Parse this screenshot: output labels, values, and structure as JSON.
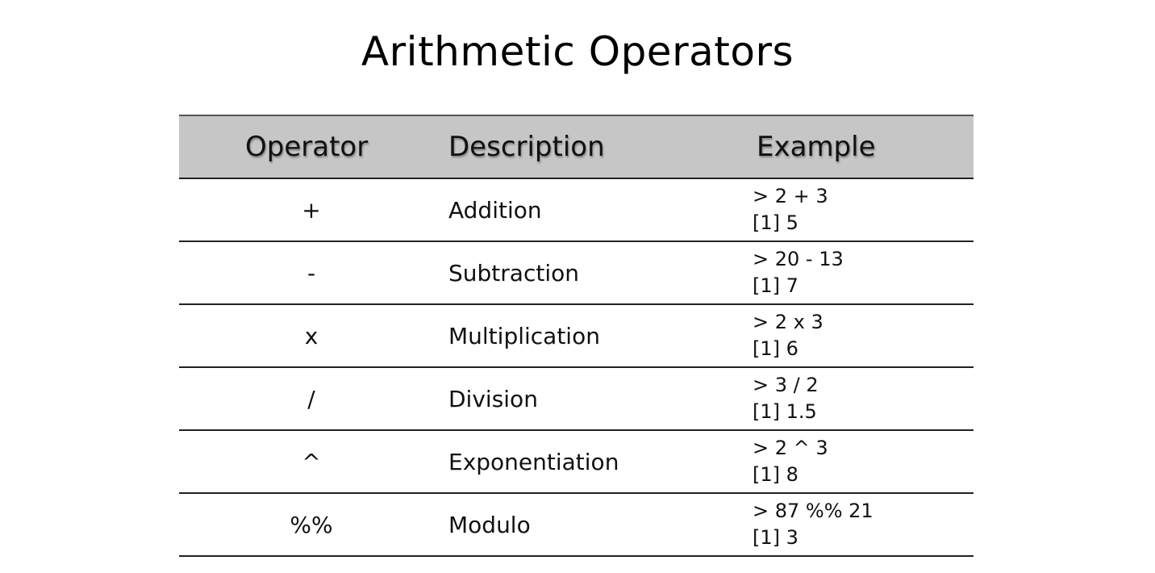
{
  "slide": {
    "title": "Arithmetic Operators"
  },
  "table": {
    "headers": {
      "operator": "Operator",
      "description": "Description",
      "example": "Example"
    },
    "rows": [
      {
        "operator": "+",
        "description": "Addition",
        "example_input": "> 2 + 3",
        "example_output": "[1] 5"
      },
      {
        "operator": "-",
        "description": "Subtraction",
        "example_input": "> 20 - 13",
        "example_output": "[1] 7"
      },
      {
        "operator": "x",
        "description": "Multiplication",
        "example_input": "> 2 x 3",
        "example_output": "[1] 6"
      },
      {
        "operator": "/",
        "description": "Division",
        "example_input": "> 3 / 2",
        "example_output": "[1] 1.5"
      },
      {
        "operator": "^",
        "description": "Exponentiation",
        "example_input": "> 2 ^ 3",
        "example_output": "[1] 8"
      },
      {
        "operator": "%%",
        "description": "Modulo",
        "example_input": "> 87 %% 21",
        "example_output": "[1] 3"
      }
    ]
  },
  "colors": {
    "header_background": "#c6c6c6",
    "rule_lines": "#222222",
    "text": "#111111"
  }
}
